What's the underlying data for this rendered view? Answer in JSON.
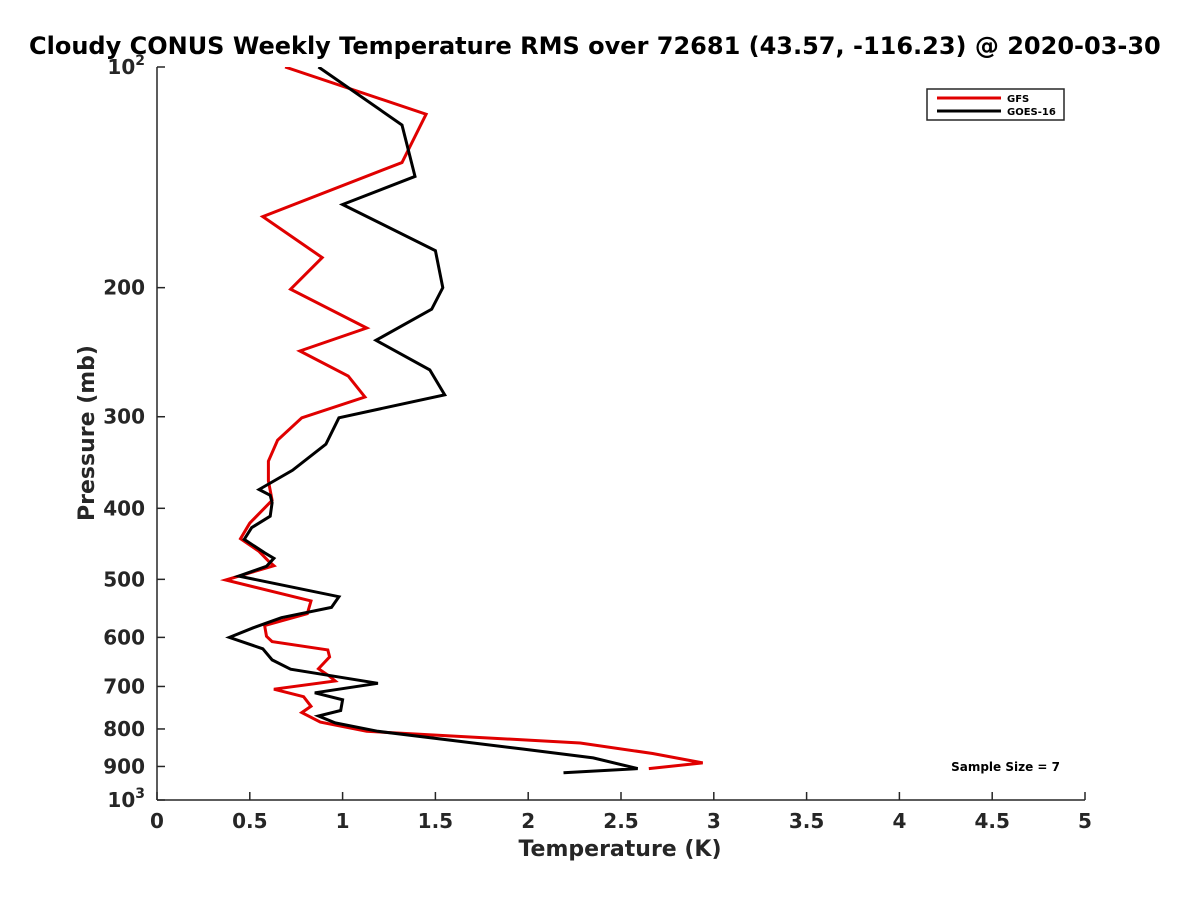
{
  "chart_data": {
    "type": "line",
    "title": "Cloudy CONUS Weekly Temperature RMS over 72681 (43.57, -116.23) @ 2020-03-30",
    "xlabel": "Temperature (K)",
    "ylabel": "Pressure (mb)",
    "xlim": [
      0,
      5
    ],
    "ylim": [
      100,
      1000
    ],
    "y_scale": "log",
    "y_reversed": true,
    "x_ticks": [
      0,
      0.5,
      1,
      1.5,
      2,
      2.5,
      3,
      3.5,
      4,
      4.5,
      5
    ],
    "x_tick_labels": [
      "0",
      "0.5",
      "1",
      "1.5",
      "2",
      "2.5",
      "3",
      "3.5",
      "4",
      "4.5",
      "5"
    ],
    "y_ticks": [
      100,
      200,
      300,
      400,
      500,
      600,
      700,
      800,
      900,
      1000
    ],
    "y_tick_labels": [
      {
        "base": "10",
        "exp": "2"
      },
      {
        "base": "200",
        "exp": ""
      },
      {
        "base": "300",
        "exp": ""
      },
      {
        "base": "400",
        "exp": ""
      },
      {
        "base": "500",
        "exp": ""
      },
      {
        "base": "600",
        "exp": ""
      },
      {
        "base": "700",
        "exp": ""
      },
      {
        "base": "800",
        "exp": ""
      },
      {
        "base": "900",
        "exp": ""
      },
      {
        "base": "10",
        "exp": "3"
      }
    ],
    "grid": false,
    "legend_position": "top-right",
    "annotation": "Sample Size = 7",
    "series": [
      {
        "name": "GFS",
        "color": "#e00000",
        "points": [
          [
            0.69,
            100
          ],
          [
            1.45,
            116
          ],
          [
            1.32,
            135
          ],
          [
            0.57,
            160
          ],
          [
            0.89,
            182
          ],
          [
            0.72,
            201
          ],
          [
            1.13,
            227
          ],
          [
            0.77,
            244
          ],
          [
            1.03,
            264
          ],
          [
            1.12,
            282
          ],
          [
            0.78,
            301
          ],
          [
            0.65,
            323
          ],
          [
            0.6,
            345
          ],
          [
            0.6,
            367
          ],
          [
            0.62,
            390
          ],
          [
            0.5,
            419
          ],
          [
            0.45,
            440
          ],
          [
            0.55,
            458
          ],
          [
            0.6,
            472
          ],
          [
            0.63,
            479
          ],
          [
            0.37,
            501
          ],
          [
            0.83,
            535
          ],
          [
            0.81,
            557
          ],
          [
            0.58,
            578
          ],
          [
            0.59,
            598
          ],
          [
            0.62,
            608
          ],
          [
            0.92,
            624
          ],
          [
            0.93,
            638
          ],
          [
            0.87,
            662
          ],
          [
            0.93,
            678
          ],
          [
            0.96,
            688
          ],
          [
            0.63,
            706
          ],
          [
            0.79,
            723
          ],
          [
            0.83,
            745
          ],
          [
            0.78,
            760
          ],
          [
            0.88,
            783
          ],
          [
            1.13,
            806
          ],
          [
            2.28,
            836
          ],
          [
            2.67,
            864
          ],
          [
            2.94,
            890
          ],
          [
            2.65,
            906
          ]
        ]
      },
      {
        "name": "GOES-16",
        "color": "#000000",
        "points": [
          [
            0.87,
            100
          ],
          [
            1.32,
            120
          ],
          [
            1.39,
            141
          ],
          [
            1.0,
            154
          ],
          [
            1.5,
            178
          ],
          [
            1.54,
            200
          ],
          [
            1.48,
            214
          ],
          [
            1.18,
            236
          ],
          [
            1.47,
            259
          ],
          [
            1.55,
            280
          ],
          [
            0.98,
            301
          ],
          [
            0.91,
            327
          ],
          [
            0.73,
            355
          ],
          [
            0.55,
            377
          ],
          [
            0.61,
            384
          ],
          [
            0.62,
            393
          ],
          [
            0.61,
            410
          ],
          [
            0.51,
            425
          ],
          [
            0.47,
            441
          ],
          [
            0.58,
            460
          ],
          [
            0.63,
            468
          ],
          [
            0.59,
            480
          ],
          [
            0.44,
            495
          ],
          [
            0.98,
            528
          ],
          [
            0.94,
            546
          ],
          [
            0.67,
            564
          ],
          [
            0.52,
            582
          ],
          [
            0.39,
            600
          ],
          [
            0.57,
            622
          ],
          [
            0.62,
            644
          ],
          [
            0.72,
            663
          ],
          [
            1.19,
            693
          ],
          [
            0.85,
            714
          ],
          [
            1.0,
            730
          ],
          [
            0.99,
            755
          ],
          [
            0.87,
            768
          ],
          [
            0.96,
            785
          ],
          [
            1.19,
            806
          ],
          [
            1.97,
            852
          ],
          [
            2.35,
            876
          ],
          [
            2.59,
            906
          ],
          [
            2.19,
            918
          ]
        ]
      }
    ]
  }
}
